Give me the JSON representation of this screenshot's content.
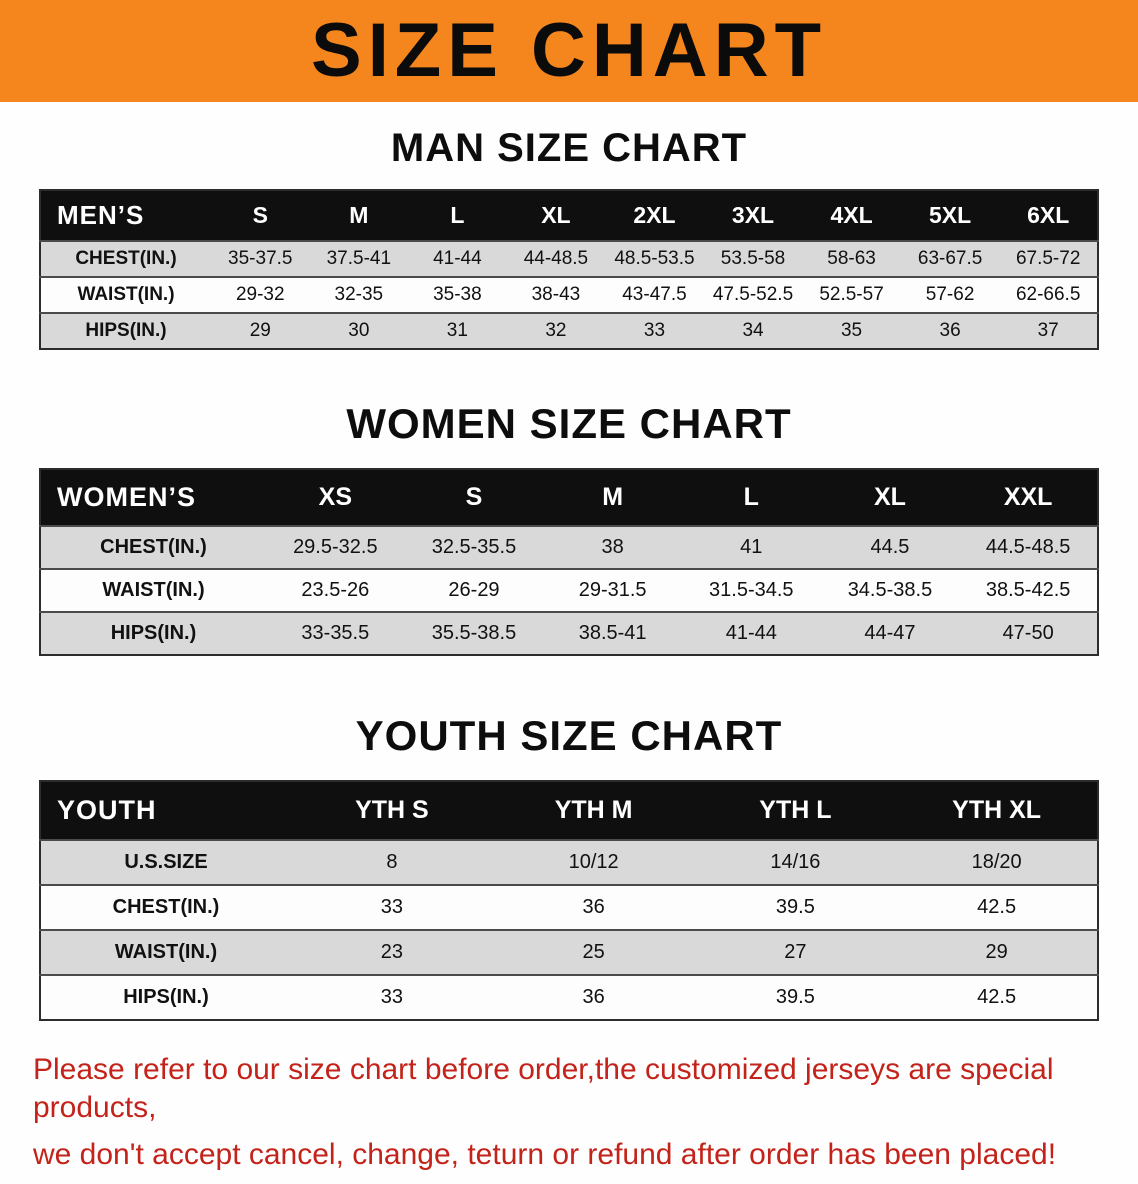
{
  "banner": {
    "title": "SIZE CHART"
  },
  "colors": {
    "banner_bg": "#f5861d",
    "table_header_bg": "#0f0f0f",
    "row_alt_bg": "#d9d9d9",
    "notice_text": "#c3231a"
  },
  "sections": [
    {
      "id": "men",
      "heading": "MAN SIZE CHART",
      "table": {
        "header": [
          "MEN’S",
          "S",
          "M",
          "L",
          "XL",
          "2XL",
          "3XL",
          "4XL",
          "5XL",
          "6XL"
        ],
        "rows": [
          [
            "CHEST(IN.)",
            "35-37.5",
            "37.5-41",
            "41-44",
            "44-48.5",
            "48.5-53.5",
            "53.5-58",
            "58-63",
            "63-67.5",
            "67.5-72"
          ],
          [
            "WAIST(IN.)",
            "29-32",
            "32-35",
            "35-38",
            "38-43",
            "43-47.5",
            "47.5-52.5",
            "52.5-57",
            "57-62",
            "62-66.5"
          ],
          [
            "HIPS(IN.)",
            "29",
            "30",
            "31",
            "32",
            "33",
            "34",
            "35",
            "36",
            "37"
          ]
        ]
      }
    },
    {
      "id": "women",
      "heading": "WOMEN SIZE CHART",
      "table": {
        "header": [
          "WOMEN’S",
          "XS",
          "S",
          "M",
          "L",
          "XL",
          "XXL"
        ],
        "rows": [
          [
            "CHEST(IN.)",
            "29.5-32.5",
            "32.5-35.5",
            "38",
            "41",
            "44.5",
            "44.5-48.5"
          ],
          [
            "WAIST(IN.)",
            "23.5-26",
            "26-29",
            "29-31.5",
            "31.5-34.5",
            "34.5-38.5",
            "38.5-42.5"
          ],
          [
            "HIPS(IN.)",
            "33-35.5",
            "35.5-38.5",
            "38.5-41",
            "41-44",
            "44-47",
            "47-50"
          ]
        ]
      }
    },
    {
      "id": "youth",
      "heading": "YOUTH SIZE CHART",
      "table": {
        "header": [
          "YOUTH",
          "YTH S",
          "YTH M",
          "YTH L",
          "YTH XL"
        ],
        "rows": [
          [
            "U.S.SIZE",
            "8",
            "10/12",
            "14/16",
            "18/20"
          ],
          [
            "CHEST(IN.)",
            "33",
            "36",
            "39.5",
            "42.5"
          ],
          [
            "WAIST(IN.)",
            "23",
            "25",
            "27",
            "29"
          ],
          [
            "HIPS(IN.)",
            "33",
            "36",
            "39.5",
            "42.5"
          ]
        ]
      }
    }
  ],
  "footer": {
    "lines": [
      "Please refer to our size chart before order,the customized jerseys are special products,",
      "we don't accept cancel, change, teturn or refund after order has been placed!"
    ]
  }
}
